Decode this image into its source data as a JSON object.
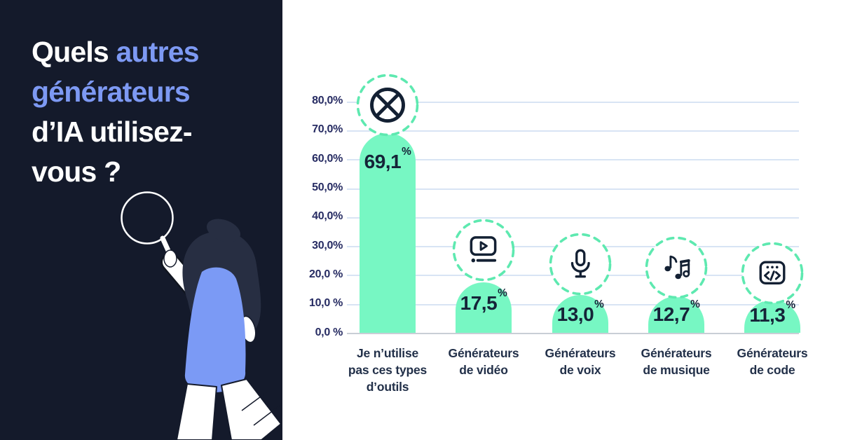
{
  "panel": {
    "bg_color": "#141a2b",
    "accent_color": "#7d99f3",
    "title": {
      "line1_white": "Quels",
      "line1_blue": " autres",
      "line2_blue": "générateurs",
      "line3_white": "d’IA utilisez-",
      "line4_white": "vous ?"
    },
    "illustration": "person-holding-magnifying-glass"
  },
  "chart_data": {
    "type": "bar",
    "title": "Quels autres générateurs d’IA utilisez-vous ?",
    "categories": [
      "Je n’utilise pas ces types d’outils",
      "Générateurs de vidéo",
      "Générateurs de voix",
      "Générateurs de musique",
      "Générateurs de code"
    ],
    "values": [
      69.1,
      17.5,
      13.0,
      12.7,
      11.3
    ],
    "unit": "%",
    "ylim": [
      0,
      80
    ],
    "grid": true,
    "legend": false,
    "y_ticks": [
      "80,0%",
      "70,0%",
      "60,0%",
      "50,0%",
      "40,0%",
      "30,0%",
      "20,0 %",
      "10,0 %",
      "0,0 %"
    ],
    "bars": [
      {
        "value_label": "69,1",
        "unit": "%",
        "icon": "no-symbol-icon",
        "label_lines": [
          "Je n’utilise",
          "pas ces types",
          "d’outils"
        ]
      },
      {
        "value_label": "17,5",
        "unit": "%",
        "icon": "video-player-icon",
        "label_lines": [
          "Générateurs",
          "de vidéo"
        ]
      },
      {
        "value_label": "13,0",
        "unit": "%",
        "icon": "microphone-icon",
        "label_lines": [
          "Générateurs",
          "de voix"
        ]
      },
      {
        "value_label": "12,7",
        "unit": "%",
        "icon": "music-notes-icon",
        "label_lines": [
          "Générateurs",
          "de musique"
        ]
      },
      {
        "value_label": "11,3",
        "unit": "%",
        "icon": "code-icon",
        "label_lines": [
          "Générateurs",
          "de code"
        ]
      }
    ],
    "colors": {
      "bar": "#77f7c3",
      "ring": "#5ee9b0",
      "gridline": "#d8e4f4",
      "baseline": "#c9ced6",
      "tick_label": "#272c63",
      "value_label": "#152438",
      "category_label": "#223049",
      "icon_stroke": "#132033"
    }
  }
}
